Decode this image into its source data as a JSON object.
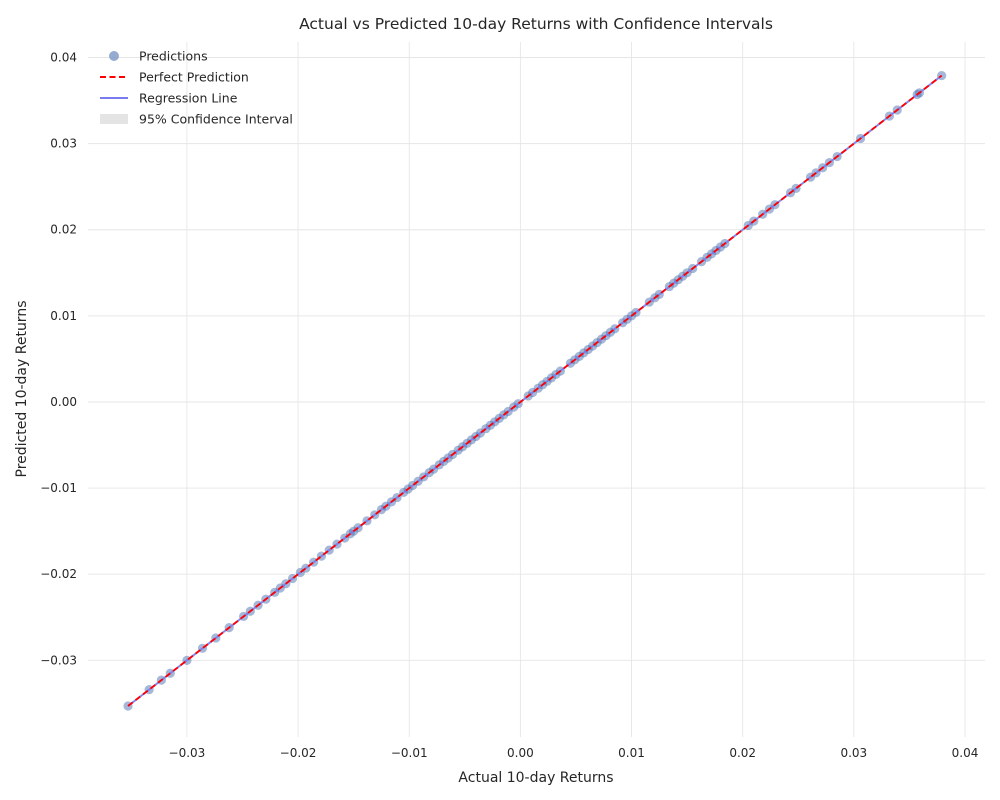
{
  "chart_data": {
    "type": "scatter",
    "title": "Actual vs Predicted 10-day Returns with Confidence Intervals",
    "xlabel": "Actual 10-day Returns",
    "ylabel": "Predicted 10-day Returns",
    "xlim": [
      -0.0389,
      0.0418
    ],
    "ylim": [
      -0.0389,
      0.0418
    ],
    "grid": true,
    "legend_position": "top-left",
    "x_ticks": [
      -0.03,
      -0.02,
      -0.01,
      0.0,
      0.01,
      0.02,
      0.03,
      0.04
    ],
    "x_tick_labels": [
      "−0.03",
      "−0.02",
      "−0.01",
      "0.00",
      "0.01",
      "0.02",
      "0.03",
      "0.04"
    ],
    "y_ticks": [
      -0.03,
      -0.02,
      -0.01,
      0.0,
      0.01,
      0.02,
      0.03,
      0.04
    ],
    "y_tick_labels": [
      "−0.03",
      "−0.02",
      "−0.01",
      "0.00",
      "0.01",
      "0.02",
      "0.03",
      "0.04"
    ],
    "legend": [
      {
        "label": "Predictions",
        "kind": "marker",
        "color": "#7b96c4"
      },
      {
        "label": "Perfect Prediction",
        "kind": "dashed-line",
        "color": "#ff0000"
      },
      {
        "label": "Regression Line",
        "kind": "line",
        "color": "#7b7bf0"
      },
      {
        "label": "95% Confidence Interval",
        "kind": "patch",
        "color": "#d9d9d9"
      }
    ],
    "series": [
      {
        "name": "Predictions",
        "kind": "scatter",
        "color": "#4c72b0",
        "x": [
          -0.0353,
          -0.0334,
          -0.0323,
          -0.0315,
          -0.03,
          -0.0286,
          -0.0274,
          -0.0262,
          -0.0249,
          -0.0243,
          -0.0236,
          -0.0229,
          -0.0221,
          -0.0216,
          -0.0211,
          -0.0205,
          -0.0198,
          -0.0193,
          -0.0186,
          -0.0179,
          -0.0172,
          -0.0165,
          -0.0158,
          -0.0153,
          -0.015,
          -0.0146,
          -0.0138,
          -0.0131,
          -0.0125,
          -0.0121,
          -0.0116,
          -0.0111,
          -0.0105,
          -0.0101,
          -0.0097,
          -0.0092,
          -0.0087,
          -0.0082,
          -0.0078,
          -0.0073,
          -0.0069,
          -0.0065,
          -0.0061,
          -0.0056,
          -0.0052,
          -0.0048,
          -0.0044,
          -0.004,
          -0.0036,
          -0.0031,
          -0.0027,
          -0.0023,
          -0.0019,
          -0.0015,
          -0.0011,
          -0.0006,
          -0.0002,
          0.0007,
          0.0011,
          0.0016,
          0.002,
          0.0024,
          0.0028,
          0.0032,
          0.0036,
          0.0045,
          0.0049,
          0.0053,
          0.0057,
          0.0061,
          0.0065,
          0.0069,
          0.0073,
          0.0077,
          0.0081,
          0.0085,
          0.0092,
          0.0096,
          0.01,
          0.0104,
          0.0116,
          0.0121,
          0.0125,
          0.0134,
          0.0138,
          0.0142,
          0.0146,
          0.015,
          0.0155,
          0.0163,
          0.0168,
          0.0172,
          0.0176,
          0.018,
          0.0184,
          0.0205,
          0.021,
          0.0218,
          0.0224,
          0.0229,
          0.0243,
          0.0248,
          0.0261,
          0.0266,
          0.0272,
          0.0278,
          0.0285,
          0.0306,
          0.0332,
          0.0339,
          0.0357,
          0.0359,
          0.0379
        ],
        "y": [
          -0.0353,
          -0.0334,
          -0.0323,
          -0.0315,
          -0.03,
          -0.0286,
          -0.0274,
          -0.0262,
          -0.0249,
          -0.0243,
          -0.0236,
          -0.0229,
          -0.0221,
          -0.0216,
          -0.0211,
          -0.0205,
          -0.0198,
          -0.0193,
          -0.0186,
          -0.0179,
          -0.0172,
          -0.0165,
          -0.0158,
          -0.0153,
          -0.015,
          -0.0146,
          -0.0138,
          -0.0131,
          -0.0125,
          -0.0121,
          -0.0116,
          -0.0111,
          -0.0105,
          -0.0101,
          -0.0097,
          -0.0092,
          -0.0087,
          -0.0082,
          -0.0078,
          -0.0073,
          -0.0069,
          -0.0065,
          -0.0061,
          -0.0056,
          -0.0052,
          -0.0048,
          -0.0044,
          -0.004,
          -0.0036,
          -0.0031,
          -0.0027,
          -0.0023,
          -0.0019,
          -0.0015,
          -0.0011,
          -0.0006,
          -0.0002,
          0.0007,
          0.0011,
          0.0016,
          0.002,
          0.0024,
          0.0028,
          0.0032,
          0.0036,
          0.0045,
          0.0049,
          0.0053,
          0.0057,
          0.0061,
          0.0065,
          0.0069,
          0.0073,
          0.0077,
          0.0081,
          0.0085,
          0.0092,
          0.0096,
          0.01,
          0.0104,
          0.0116,
          0.0121,
          0.0125,
          0.0134,
          0.0138,
          0.0142,
          0.0146,
          0.015,
          0.0155,
          0.0163,
          0.0168,
          0.0172,
          0.0176,
          0.018,
          0.0184,
          0.0205,
          0.021,
          0.0218,
          0.0224,
          0.0229,
          0.0243,
          0.0248,
          0.0261,
          0.0266,
          0.0272,
          0.0278,
          0.0285,
          0.0306,
          0.0332,
          0.0339,
          0.0357,
          0.0359,
          0.0379
        ]
      },
      {
        "name": "Perfect Prediction",
        "kind": "dashed-line",
        "color": "#ff0000",
        "x": [
          -0.0353,
          0.0379
        ],
        "y": [
          -0.0353,
          0.0379
        ]
      },
      {
        "name": "Regression Line",
        "kind": "line",
        "color": "#7b7bf0",
        "x": [
          -0.0353,
          0.0379
        ],
        "y": [
          -0.0353,
          0.0379
        ]
      },
      {
        "name": "95% Confidence Interval",
        "kind": "band",
        "color": "#d9d9d9",
        "x": [
          -0.0353,
          0.0379
        ],
        "y_lower": [
          -0.0354,
          0.0378
        ],
        "y_upper": [
          -0.0352,
          0.038
        ]
      }
    ]
  }
}
